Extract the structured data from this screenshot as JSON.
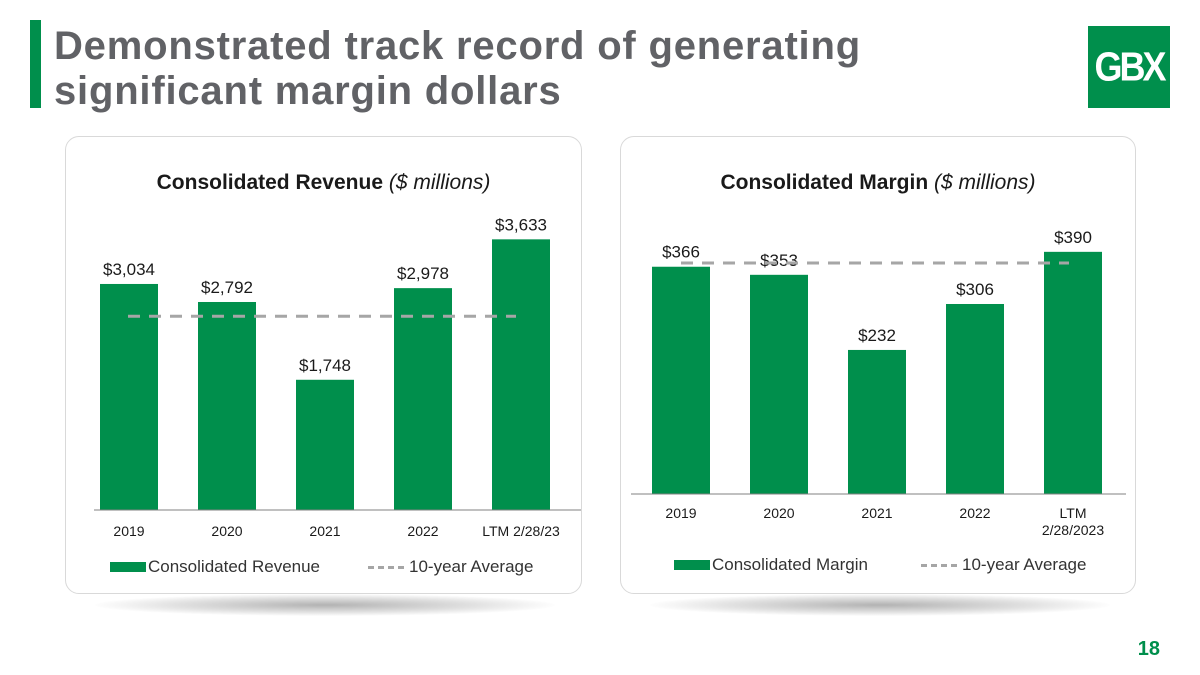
{
  "slide": {
    "title_lines": [
      "Demonstrated track record of generating",
      "significant margin dollars"
    ],
    "logo_text": "GBX",
    "page_number": "18",
    "accent_color": "#008f4c",
    "average_line_color": "#a6a6a6"
  },
  "chart_data": [
    {
      "type": "bar",
      "title": "Consolidated Revenue",
      "title_unit": "($ millions)",
      "categories": [
        "2019",
        "2020",
        "2021",
        "2022",
        "LTM 2/28/23"
      ],
      "series": [
        {
          "name": "Consolidated Revenue",
          "values": [
            3034,
            2792,
            1748,
            2978,
            3633
          ]
        }
      ],
      "value_labels": [
        "$3,034",
        "$2,792",
        "$1,748",
        "$2,978",
        "$3,633"
      ],
      "reference_line": {
        "name": "10-year Average",
        "value": 2600
      },
      "ylim": [
        0,
        4000
      ],
      "grid": false,
      "legend_position": "bottom"
    },
    {
      "type": "bar",
      "title": "Consolidated Margin",
      "title_unit": "($ millions)",
      "categories": [
        "2019",
        "2020",
        "2021",
        "2022",
        "LTM\n2/28/2023"
      ],
      "series": [
        {
          "name": "Consolidated Margin",
          "values": [
            366,
            353,
            232,
            306,
            390
          ]
        }
      ],
      "value_labels": [
        "$366",
        "$353",
        "$232",
        "$306",
        "$390"
      ],
      "reference_line": {
        "name": "10-year Average",
        "value": 372
      },
      "ylim": [
        0,
        430
      ],
      "grid": false,
      "legend_position": "bottom"
    }
  ]
}
